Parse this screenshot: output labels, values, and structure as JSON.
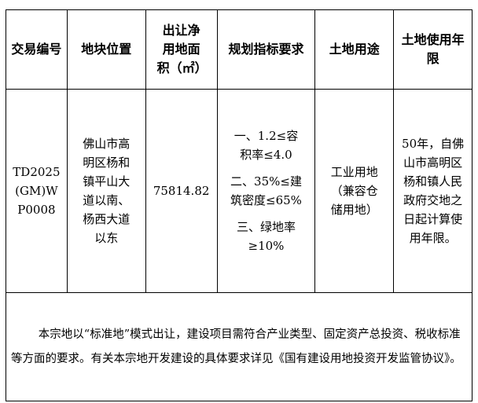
{
  "headers": [
    "交易编号",
    "地块位置",
    "出让净用地面积（㎡）",
    "规划指标要求",
    "土地用途",
    "土地使用年限"
  ],
  "row": {
    "code": "TD2025(GM)WP0008",
    "location": "佛山市高明区杨和镇平山大道以南、杨西大道以东",
    "area": "75814.82",
    "requirements": [
      "一、1.2≤容积率≤4.0",
      "二、35%≤建筑密度≤65%",
      "三、绿地率≥10%"
    ],
    "use": "工业用地（兼容仓储用地）",
    "term": "50年，自佛山市高明区杨和镇人民政府交地之日起计算使用年限。"
  },
  "note": "本宗地以“标准地”模式出让，建设项目需符合产业类型、固定资产总投资、税收标准等方面的要求。有关本宗地开发建设的具体要求详见《国有建设用地投资开发监管协议》。"
}
